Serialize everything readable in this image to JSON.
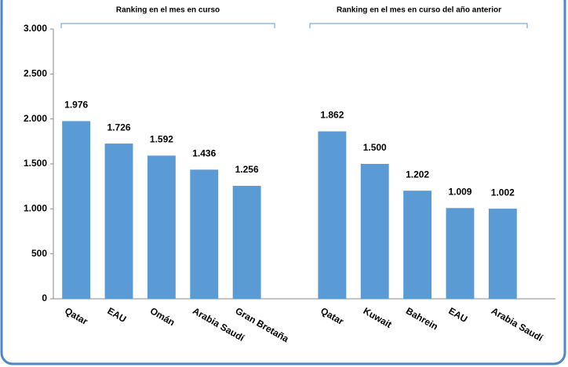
{
  "chart_data": {
    "type": "bar",
    "annotations": [
      "Ranking en el mes en curso",
      "Ranking en el mes en curso del año anterior"
    ],
    "categories": [
      "Qatar",
      "EAU",
      "Omán",
      "Arabia Saudí",
      "Gran Bretaña",
      null,
      "Qatar",
      "Kuwait",
      "Bahrein",
      "EAU",
      "Arabia Saudí"
    ],
    "values": [
      1976,
      1726,
      1592,
      1436,
      1256,
      null,
      1862,
      1500,
      1202,
      1009,
      1002
    ],
    "value_labels": [
      "1.976",
      "1.726",
      "1.592",
      "1.436",
      "1.256",
      null,
      "1.862",
      "1.500",
      "1.202",
      "1.009",
      "1.002"
    ],
    "color": "#5b9bd5",
    "ylim": [
      0,
      3000
    ],
    "yticks": [
      0,
      500,
      {
        "value": 1000,
        "label": "1.000"
      },
      {
        "value": 1500,
        "label": "1.500"
      },
      {
        "value": 2000,
        "label": "2.000"
      },
      {
        "value": 2500,
        "label": "2.500"
      },
      {
        "value": 3000,
        "label": "3.000"
      }
    ],
    "grid": false
  }
}
